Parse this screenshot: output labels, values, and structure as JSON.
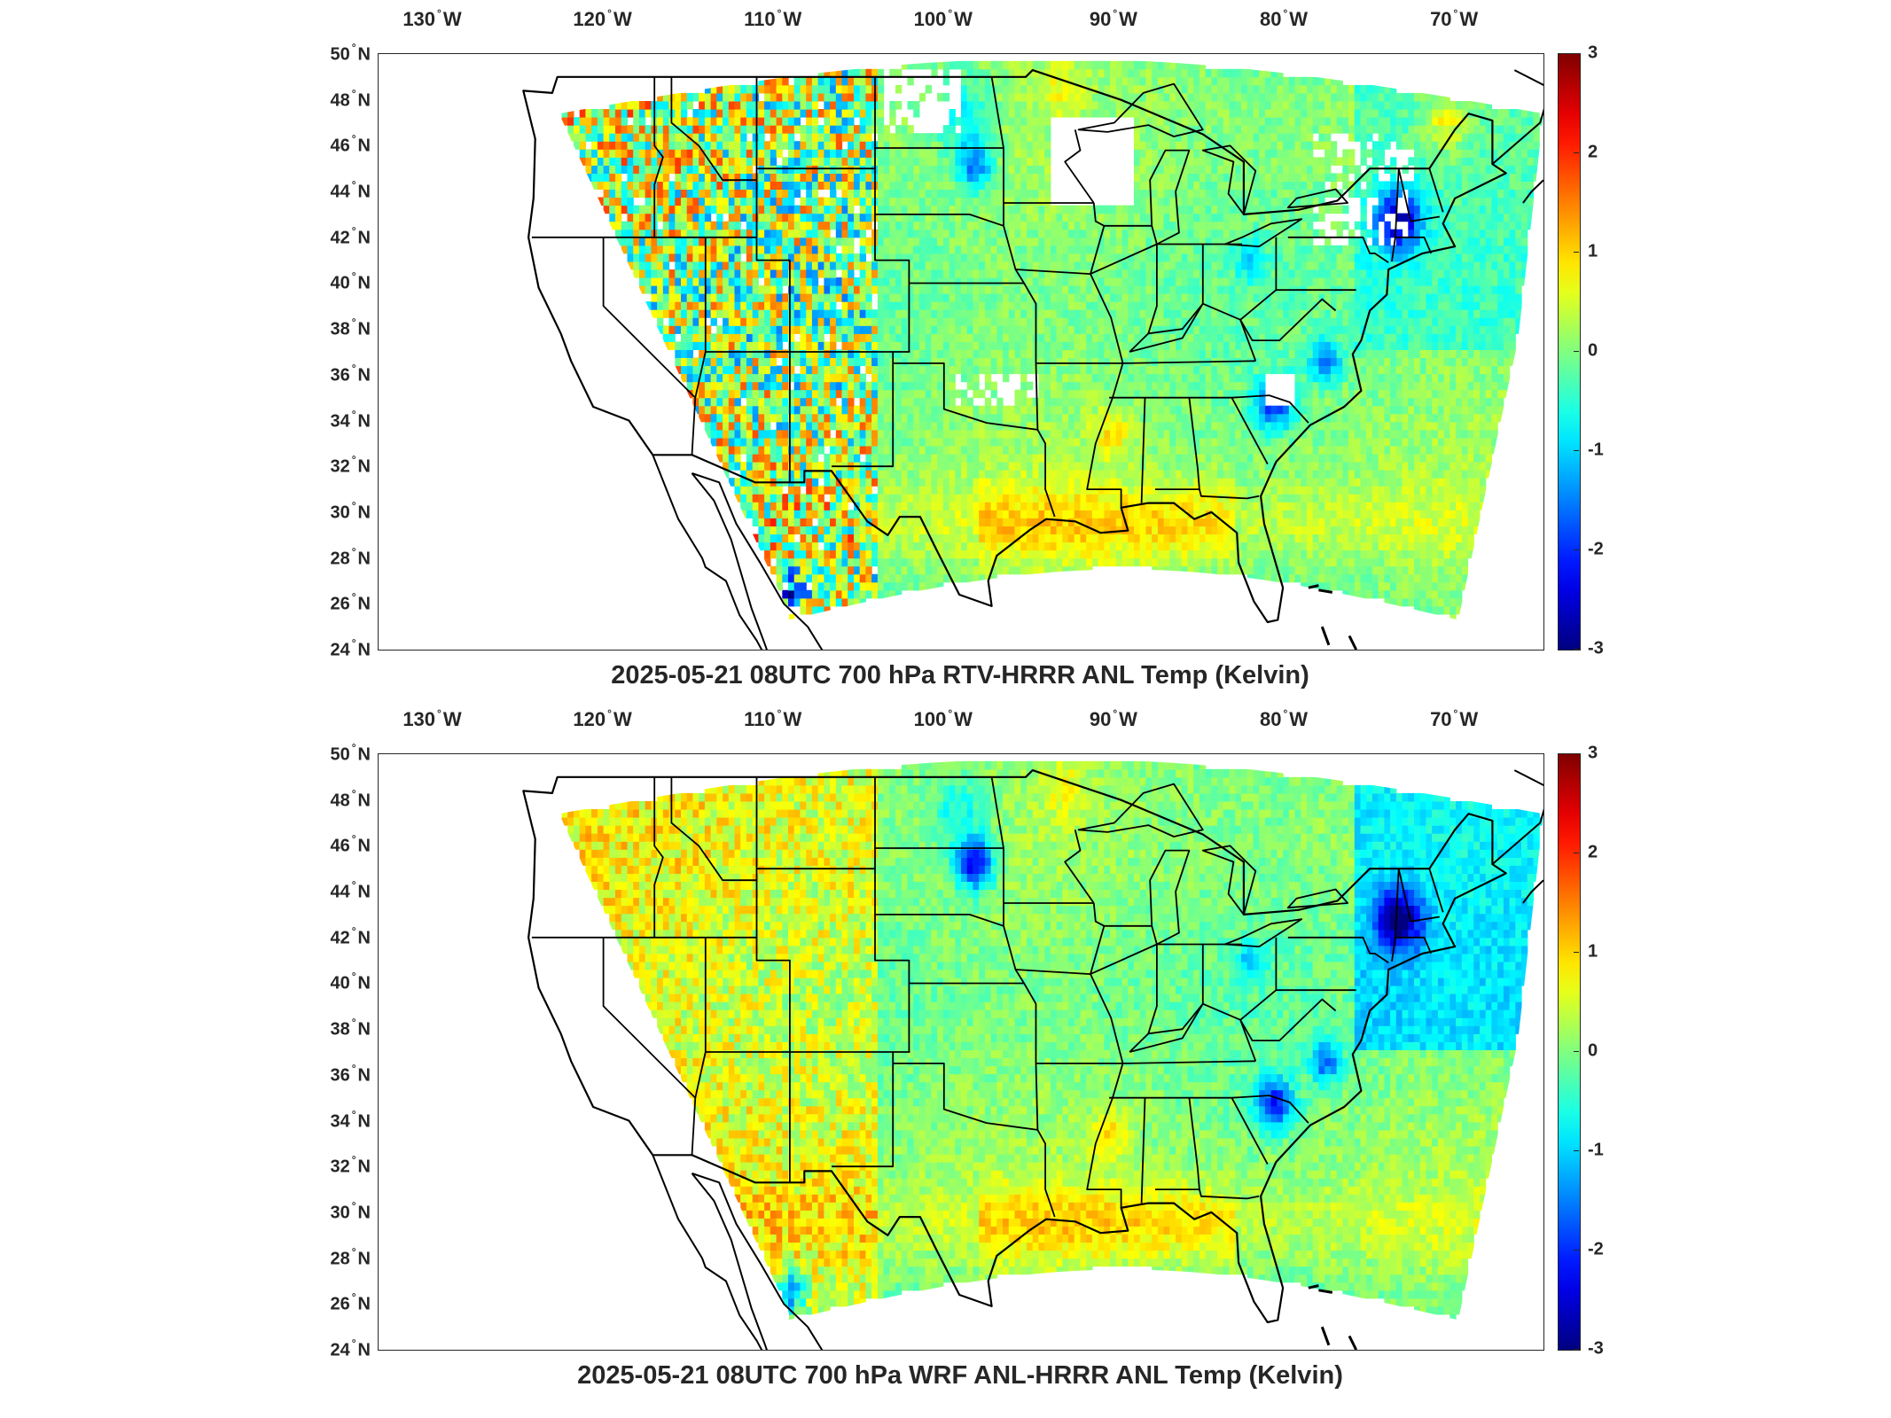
{
  "panels": [
    {
      "title": "2025-05-21 08UTC 700 hPa RTV-HRRR ANL Temp (Kelvin)",
      "variant": "rtv"
    },
    {
      "title": "2025-05-21 08UTC 700 hPa WRF ANL-HRRR ANL Temp (Kelvin)",
      "variant": "wrf"
    }
  ],
  "axes": {
    "lon_ticks": [
      {
        "value": -130,
        "deg": "130",
        "hem": "W"
      },
      {
        "value": -120,
        "deg": "120",
        "hem": "W"
      },
      {
        "value": -110,
        "deg": "110",
        "hem": "W"
      },
      {
        "value": -100,
        "deg": "100",
        "hem": "W"
      },
      {
        "value": -90,
        "deg": "90",
        "hem": "W"
      },
      {
        "value": -80,
        "deg": "80",
        "hem": "W"
      },
      {
        "value": -70,
        "deg": "70",
        "hem": "W"
      }
    ],
    "lat_ticks": [
      {
        "value": 50,
        "deg": "50",
        "hem": "N"
      },
      {
        "value": 48,
        "deg": "48",
        "hem": "N"
      },
      {
        "value": 46,
        "deg": "46",
        "hem": "N"
      },
      {
        "value": 44,
        "deg": "44",
        "hem": "N"
      },
      {
        "value": 42,
        "deg": "42",
        "hem": "N"
      },
      {
        "value": 40,
        "deg": "40",
        "hem": "N"
      },
      {
        "value": 38,
        "deg": "38",
        "hem": "N"
      },
      {
        "value": 36,
        "deg": "36",
        "hem": "N"
      },
      {
        "value": 34,
        "deg": "34",
        "hem": "N"
      },
      {
        "value": 32,
        "deg": "32",
        "hem": "N"
      },
      {
        "value": 30,
        "deg": "30",
        "hem": "N"
      },
      {
        "value": 28,
        "deg": "28",
        "hem": "N"
      },
      {
        "value": 26,
        "deg": "26",
        "hem": "N"
      },
      {
        "value": 24,
        "deg": "24",
        "hem": "N"
      }
    ]
  },
  "colorbar": {
    "ticks": [
      "3",
      "2",
      "1",
      "0",
      "-1",
      "-2",
      "-3"
    ],
    "min": -3,
    "max": 3,
    "colormap": "jet"
  },
  "colors": {
    "jet_dark_blue": "#00008f",
    "jet_blue": "#0060ff",
    "jet_cyan": "#40e0ff",
    "jet_green": "#80ff80",
    "jet_yellow": "#ffe000",
    "jet_orange": "#ff8000",
    "jet_dark_red": "#800000"
  }
}
